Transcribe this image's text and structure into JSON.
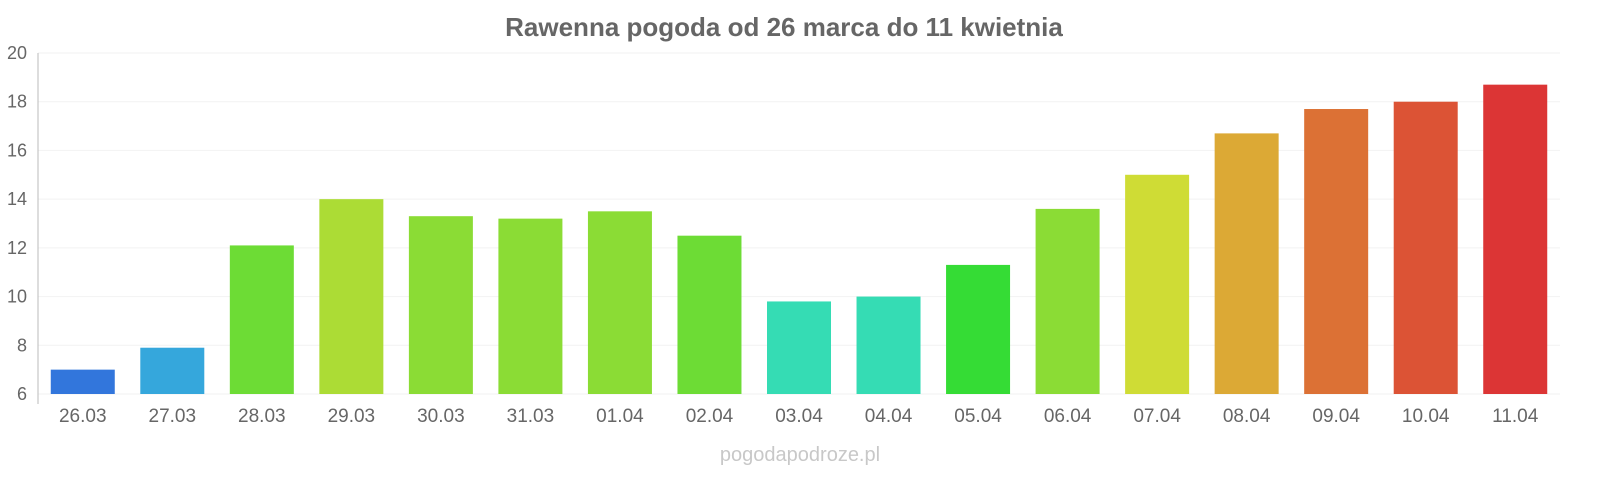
{
  "chart_data": {
    "type": "bar",
    "title": "Rawenna pogoda od 26 marca do 11 kwietnia",
    "xlabel": "",
    "ylabel": "",
    "ylim": [
      6,
      20
    ],
    "yticks": [
      "6",
      "8",
      "10",
      "12",
      "14",
      "16",
      "18",
      "20"
    ],
    "categories": [
      "26.03",
      "27.03",
      "28.03",
      "29.03",
      "30.03",
      "31.03",
      "01.04",
      "02.04",
      "03.04",
      "04.04",
      "05.04",
      "06.04",
      "07.04",
      "08.04",
      "09.04",
      "10.04",
      "11.04"
    ],
    "values": [
      7.0,
      7.9,
      12.1,
      14.0,
      13.3,
      13.2,
      13.5,
      12.5,
      9.8,
      10.0,
      11.3,
      13.6,
      15.0,
      16.7,
      17.7,
      18.0,
      18.7
    ],
    "colors": [
      "#3276dc",
      "#35a7dc",
      "#6ddc35",
      "#acdc35",
      "#8bdc35",
      "#8bdc35",
      "#8bdc35",
      "#6ddc35",
      "#35dcb4",
      "#35dcb4",
      "#35dc35",
      "#8bdc35",
      "#cfdc35",
      "#dca935",
      "#dc7135",
      "#dc5335",
      "#dc3535"
    ],
    "grid": true,
    "legend": "none",
    "credit": "pogodapodroze.pl"
  }
}
